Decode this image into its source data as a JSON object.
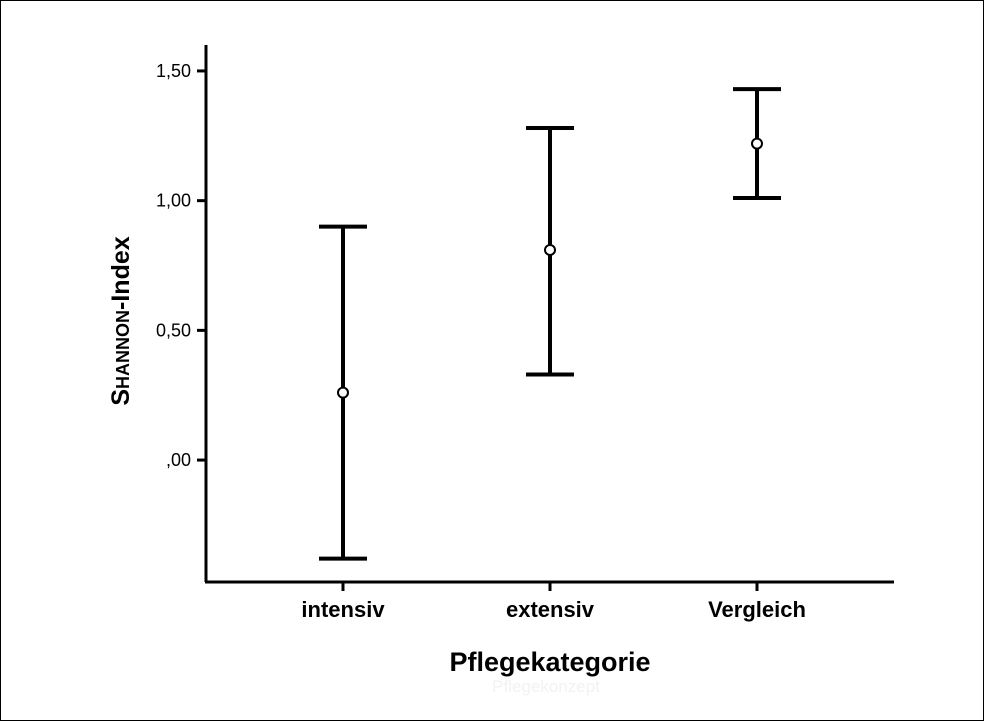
{
  "chart_data": {
    "type": "errorbar",
    "title": "",
    "xlabel": "Pflegekategorie",
    "xlabel_ghost": "Pflegekonzept",
    "ylabel_parts": [
      "S",
      "HANNON",
      "-Index"
    ],
    "categories": [
      "intensiv",
      "extensiv",
      "Vergleich"
    ],
    "series": [
      {
        "mean": [
          0.26,
          0.81,
          1.22
        ],
        "lower": [
          -0.38,
          0.33,
          1.01
        ],
        "upper": [
          0.9,
          1.28,
          1.43
        ]
      }
    ],
    "ylim": [
      -0.47,
      1.6
    ],
    "yticks": [
      0,
      0.5,
      1.0,
      1.5
    ],
    "ytick_labels": [
      ",00",
      "0,50",
      "1,00",
      "1,50"
    ],
    "grid": false,
    "legend": "none",
    "colors": {
      "line": "#000000",
      "marker_fill": "#ffffff"
    }
  }
}
